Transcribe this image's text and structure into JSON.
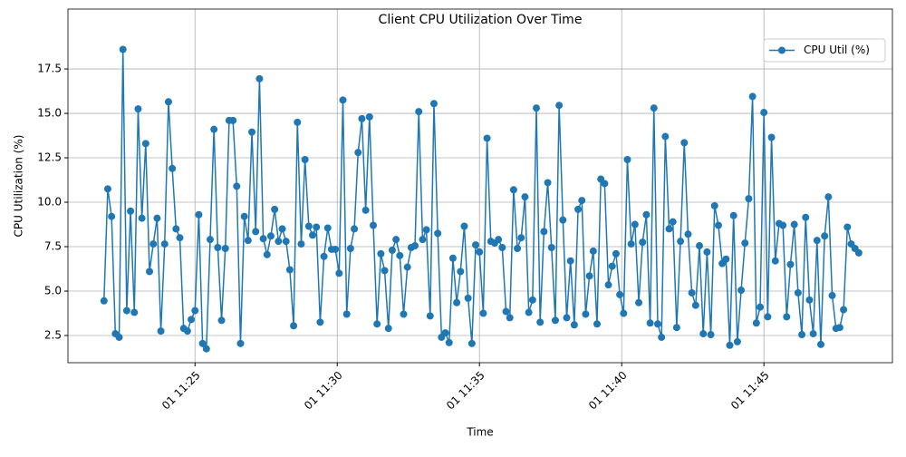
{
  "chart_data": {
    "type": "line",
    "title": "Client CPU Utilization Over Time",
    "x_label": "Time",
    "y_label": "CPU Utilization (%)",
    "x": [
      1308,
      1316,
      1324,
      1332,
      1340,
      1348,
      1356,
      1364,
      1372,
      1380,
      1388,
      1396,
      1404,
      1412,
      1420,
      1428,
      1436,
      1444,
      1452,
      1460,
      1468,
      1476,
      1484,
      1492,
      1500,
      1508,
      1516,
      1524,
      1532,
      1540,
      1548,
      1556,
      1564,
      1572,
      1580,
      1588,
      1596,
      1604,
      1612,
      1620,
      1628,
      1636,
      1644,
      1652,
      1660,
      1668,
      1676,
      1684,
      1692,
      1700,
      1708,
      1716,
      1724,
      1732,
      1740,
      1748,
      1756,
      1764,
      1772,
      1780,
      1788,
      1796,
      1804,
      1812,
      1820,
      1828,
      1836,
      1844,
      1852,
      1860,
      1868,
      1876,
      1884,
      1892,
      1900,
      1908,
      1916,
      1924,
      1932,
      1940,
      1948,
      1956,
      1964,
      1972,
      1980,
      1988,
      1996,
      2004,
      2012,
      2020,
      2028,
      2036,
      2044,
      2052,
      2060,
      2068,
      2076,
      2084,
      2092,
      2100,
      2108,
      2116,
      2124,
      2132,
      2140,
      2148,
      2156,
      2164,
      2172,
      2180,
      2188,
      2196,
      2204,
      2212,
      2220,
      2228,
      2236,
      2244,
      2252,
      2260,
      2268,
      2276,
      2284,
      2292,
      2300,
      2308,
      2316,
      2324,
      2332,
      2340,
      2348,
      2356,
      2364,
      2372,
      2380,
      2388,
      2396,
      2404,
      2412,
      2420,
      2428,
      2436,
      2444,
      2452,
      2460,
      2468,
      2476,
      2484,
      2492,
      2500,
      2508,
      2516,
      2524,
      2532,
      2540,
      2548,
      2556,
      2564,
      2572,
      2580,
      2588,
      2596,
      2604,
      2612,
      2620,
      2628,
      2636,
      2644,
      2652,
      2660,
      2668,
      2676,
      2684,
      2692,
      2700,
      2708,
      2716,
      2724,
      2732,
      2740,
      2748,
      2756,
      2764,
      2772,
      2780,
      2788,
      2796,
      2804,
      2812,
      2820,
      2828,
      2836,
      2844,
      2852,
      2860,
      2868,
      2876,
      2884,
      2892,
      2900
    ],
    "series": [
      {
        "name": "CPU Util (%)",
        "color": "#1f77b4",
        "values": [
          4.45,
          10.75,
          9.2,
          2.6,
          2.4,
          18.6,
          3.9,
          9.5,
          3.8,
          15.25,
          9.1,
          13.3,
          6.1,
          7.65,
          9.1,
          2.75,
          7.65,
          15.65,
          11.9,
          8.5,
          8.0,
          2.9,
          2.75,
          3.4,
          3.9,
          9.3,
          2.05,
          1.75,
          7.9,
          14.1,
          7.45,
          3.35,
          7.4,
          14.6,
          14.6,
          10.9,
          2.05,
          9.2,
          7.85,
          13.95,
          8.35,
          16.95,
          7.95,
          7.05,
          8.1,
          9.6,
          7.8,
          8.5,
          7.8,
          6.2,
          3.05,
          14.5,
          7.65,
          12.4,
          8.65,
          8.15,
          8.6,
          3.25,
          6.95,
          8.55,
          7.35,
          7.35,
          6.0,
          15.75,
          3.7,
          7.4,
          8.5,
          12.8,
          14.7,
          9.55,
          14.8,
          8.7,
          3.15,
          7.1,
          6.15,
          2.9,
          7.3,
          7.9,
          7.0,
          3.7,
          6.35,
          7.45,
          7.55,
          15.1,
          7.9,
          8.45,
          3.6,
          15.55,
          8.25,
          2.4,
          2.65,
          2.1,
          6.85,
          4.35,
          6.1,
          8.65,
          4.6,
          2.05,
          7.6,
          7.2,
          3.75,
          13.6,
          7.8,
          7.7,
          7.9,
          7.45,
          3.85,
          3.5,
          10.7,
          7.4,
          8.0,
          10.3,
          3.8,
          4.5,
          15.3,
          3.25,
          8.35,
          11.1,
          7.45,
          3.35,
          15.45,
          9.0,
          3.5,
          6.7,
          3.1,
          9.6,
          10.1,
          3.7,
          5.85,
          7.25,
          3.15,
          11.3,
          11.05,
          5.35,
          6.4,
          7.1,
          4.8,
          3.75,
          12.4,
          7.65,
          8.75,
          4.35,
          7.75,
          9.3,
          3.2,
          15.3,
          3.15,
          2.4,
          13.7,
          8.5,
          8.9,
          2.95,
          7.8,
          13.35,
          8.2,
          4.9,
          4.2,
          7.55,
          2.6,
          7.2,
          2.55,
          9.8,
          8.7,
          6.55,
          6.8,
          1.95,
          9.25,
          2.15,
          5.05,
          7.7,
          10.2,
          15.95,
          3.2,
          4.1,
          15.05,
          3.55,
          13.65,
          6.7,
          8.8,
          8.7,
          3.55,
          6.5,
          8.75,
          4.9,
          2.55,
          9.15,
          4.5,
          2.6,
          7.85,
          2.0,
          8.1,
          10.3,
          4.75,
          2.9,
          2.95,
          3.95,
          8.6,
          7.65,
          7.4,
          7.15
        ]
      }
    ],
    "xlim": [
      1232,
      2971
    ],
    "xticks": [
      {
        "value": 1500,
        "label": "01 11:25"
      },
      {
        "value": 1800,
        "label": "01 11:30"
      },
      {
        "value": 2100,
        "label": "01 11:35"
      },
      {
        "value": 2400,
        "label": "01 11:40"
      },
      {
        "value": 2700,
        "label": "01 11:45"
      }
    ],
    "ylim": [
      0.97,
      20.87
    ],
    "yticks": [
      2.5,
      {
        "value": 5,
        "label": "5.0"
      },
      7.5,
      {
        "value": 10,
        "label": "10.0"
      },
      12.5,
      {
        "value": 15,
        "label": "15.0"
      },
      17.5
    ],
    "grid": true,
    "legend": "upper right"
  }
}
